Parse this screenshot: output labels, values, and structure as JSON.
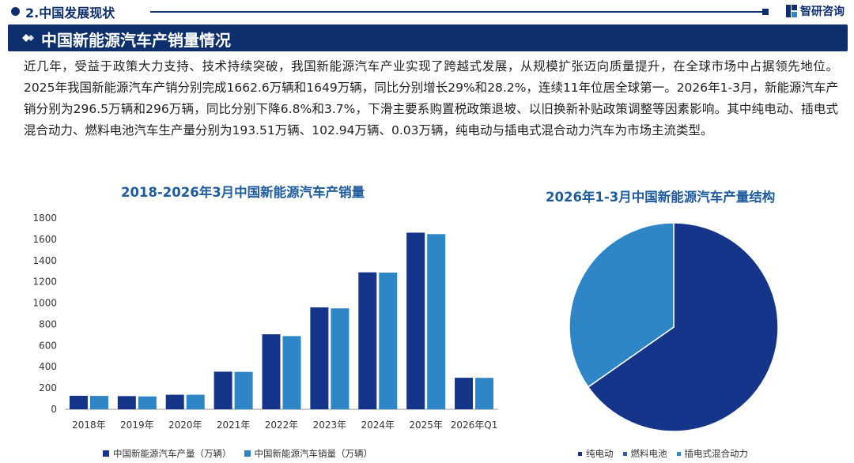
{
  "header": {
    "section_label": "2.中国发展现状",
    "logo_text": "智研咨询"
  },
  "banner": {
    "title": "中国新能源汽车产销量情况"
  },
  "paragraph": "近几年，受益于政策大力支持、技术持续突破，我国新能源汽车产业实现了跨越式发展，从规模扩张迈向质量提升，在全球市场中占据领先地位。2025年我国新能源汽车产销分别完成1662.6万辆和1649万辆，同比分别增长29%和28.2%，连续11年位居全球第一。2026年1-3月，新能源汽车产销分别为296.5万辆和296万辆，同比分别下降6.8%和3.7%，下滑主要系购置税政策退坡、以旧换新补贴政策调整等因素影响。其中纯电动、插电式混合动力、燃料电池汽车生产量分别为193.51万辆、102.94万辆、0.03万辆，纯电动与插电式混合动力汽车为市场主流类型。",
  "colors": {
    "navy": "#0d2f6e",
    "dark_series": "#15358a",
    "light_series": "#2e86c6",
    "title_blue": "#1f5c9e"
  },
  "chart_data": [
    {
      "type": "bar",
      "title": "2018-2026年3月中国新能源汽车产销量",
      "categories": [
        "2018年",
        "2019年",
        "2020年",
        "2021年",
        "2022年",
        "2023年",
        "2024年",
        "2025年",
        "2026年Q1"
      ],
      "series": [
        {
          "name": "中国新能源汽车产量（万辆）",
          "color": "#15358a",
          "values": [
            127,
            124,
            137,
            354,
            706,
            959,
            1289,
            1662.6,
            296.5
          ]
        },
        {
          "name": "中国新能源汽车销量（万辆）",
          "color": "#2e86c6",
          "values": [
            126,
            121,
            137,
            352,
            689,
            950,
            1287,
            1649,
            296
          ]
        }
      ],
      "ylim": [
        0,
        1800
      ],
      "yticks": [
        0,
        200,
        400,
        600,
        800,
        1000,
        1200,
        1400,
        1600,
        1800
      ],
      "grid": false,
      "legend": "bottom"
    },
    {
      "type": "pie",
      "title": "2026年1-3月中国新能源汽车产量结构",
      "labels": [
        "纯电动",
        "燃料电池",
        "插电式混合动力"
      ],
      "values": [
        193.51,
        0.03,
        102.94
      ],
      "colors": [
        "#15358a",
        "#2f5fa8",
        "#2e86c6"
      ],
      "legend": "bottom"
    }
  ]
}
